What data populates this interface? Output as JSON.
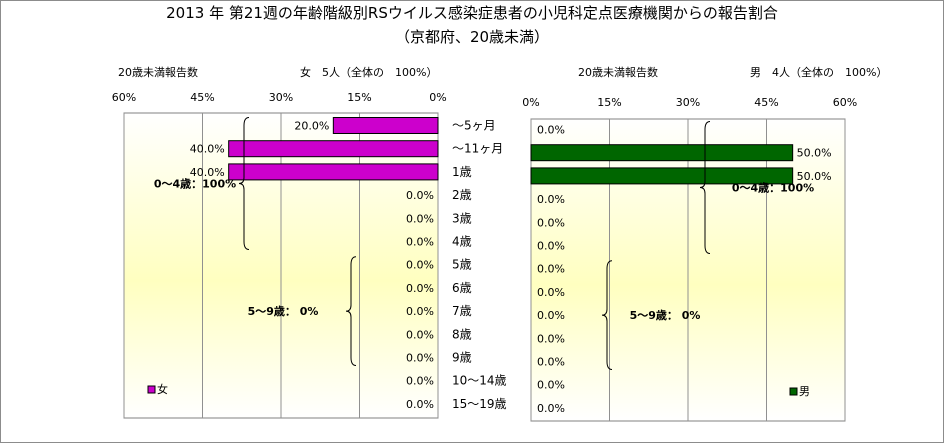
{
  "title": "2013 年 第21週の年齢階級別RSウイルス感染症患者の小児科定点医療機関からの報告割合",
  "subtitle": "（京都府、20歳未満）",
  "chart_data": {
    "type": "bar",
    "title": "2013 年 第21週の年齢階級別RSウイルス感染症患者の小児科定点医療機関からの報告割合",
    "subtitle": "（京都府、20歳未満）",
    "categories": [
      "～5ヶ月",
      "～11ヶ月",
      "1歳",
      "2歳",
      "3歳",
      "4歳",
      "5歳",
      "6歳",
      "7歳",
      "8歳",
      "9歳",
      "10～14歳",
      "15～19歳"
    ],
    "xlim": [
      0,
      60
    ],
    "ticks": [
      0,
      15,
      30,
      45,
      60
    ],
    "tick_labels": [
      "0%",
      "15%",
      "30%",
      "45%",
      "60%"
    ],
    "grid": true,
    "series": [
      {
        "name": "女",
        "color": "#cc00cc",
        "header_left": "20歳未満報告数",
        "header_right": "女　5人（全体の　100%）",
        "values": [
          20.0,
          40.0,
          40.0,
          0.0,
          0.0,
          0.0,
          0.0,
          0.0,
          0.0,
          0.0,
          0.0,
          0.0,
          0.0
        ],
        "value_labels": [
          "20.0%",
          "40.0%",
          "40.0%",
          "0.0%",
          "0.0%",
          "0.0%",
          "0.0%",
          "0.0%",
          "0.0%",
          "0.0%",
          "0.0%",
          "0.0%",
          "0.0%"
        ],
        "group_labels": [
          "0～4歳：100%",
          "5～9歳：  0%"
        ],
        "legend_label": "女"
      },
      {
        "name": "男",
        "color": "#006600",
        "header_left": "20歳未満報告数",
        "header_right": "男　4人（全体の　100%）",
        "values": [
          0.0,
          50.0,
          50.0,
          0.0,
          0.0,
          0.0,
          0.0,
          0.0,
          0.0,
          0.0,
          0.0,
          0.0,
          0.0
        ],
        "value_labels": [
          "0.0%",
          "50.0%",
          "50.0%",
          "0.0%",
          "0.0%",
          "0.0%",
          "0.0%",
          "0.0%",
          "0.0%",
          "0.0%",
          "0.0%",
          "0.0%",
          "0.0%"
        ],
        "group_labels": [
          "0～4歳：100%",
          "5～9歳：  0%"
        ],
        "legend_label": "男"
      }
    ]
  }
}
